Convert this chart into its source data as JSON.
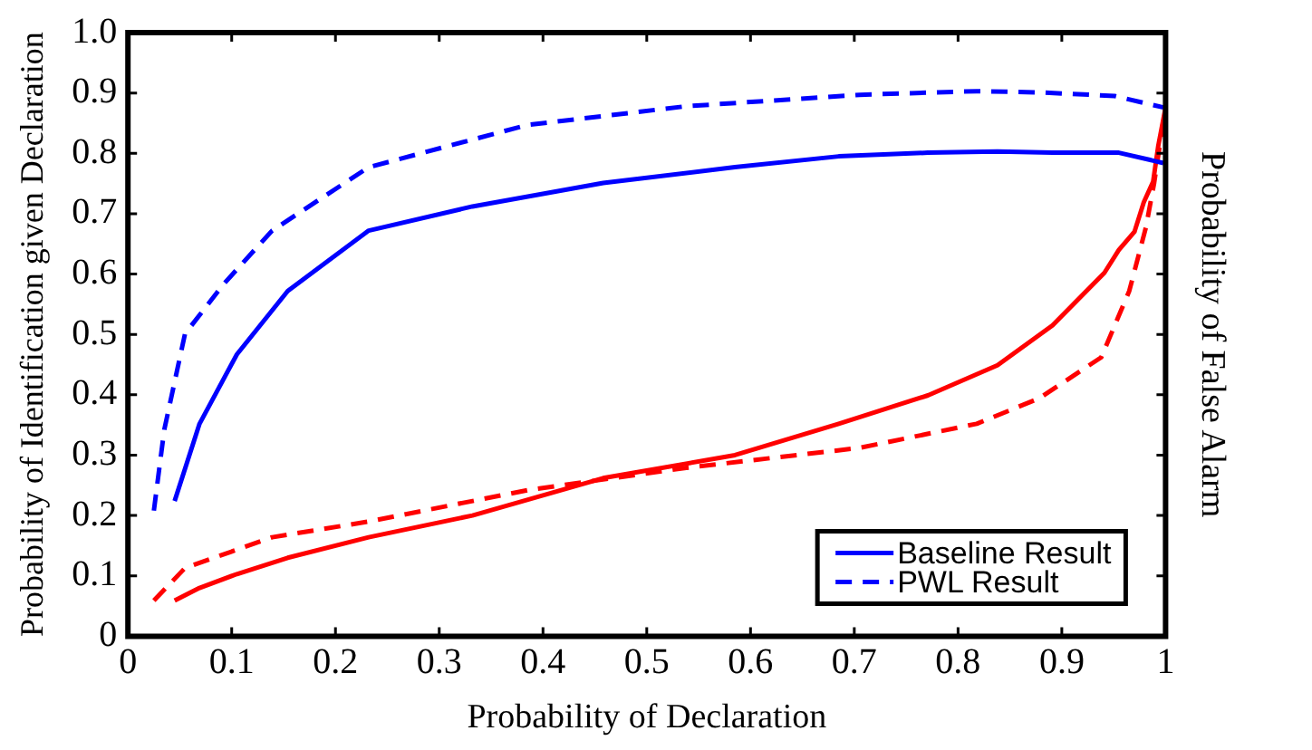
{
  "chart_data": {
    "type": "line",
    "xlabel": "Probability of Declaration",
    "ylabel": "Probability of Identification given Declaration",
    "y2label": "Probability of False Alarm",
    "xlim": [
      0,
      1
    ],
    "ylim": [
      0,
      1
    ],
    "xticks": [
      0,
      0.1,
      0.2,
      0.3,
      0.4,
      0.5,
      0.6,
      0.7,
      0.8,
      0.9,
      1
    ],
    "yticks": [
      0,
      0.1,
      0.2,
      0.3,
      0.4,
      0.5,
      0.6,
      0.7,
      0.8,
      0.9,
      {
        "value": 1,
        "label": "1.0"
      }
    ],
    "grid": false,
    "legend": "bottom right",
    "marker": "none",
    "series": [
      {
        "name": "Baseline Result",
        "color": "#0000ff",
        "line_style": "solid",
        "x": [
          0.045,
          0.069,
          0.105,
          0.154,
          0.232,
          0.332,
          0.458,
          0.585,
          0.685,
          0.771,
          0.838,
          0.891,
          0.955,
          0.998
        ],
        "values": [
          0.224,
          0.352,
          0.467,
          0.572,
          0.672,
          0.712,
          0.751,
          0.777,
          0.795,
          0.801,
          0.803,
          0.801,
          0.801,
          0.784
        ]
      },
      {
        "name": "PWL Result",
        "color": "#0000ff",
        "line_style": "dashed",
        "x": [
          0.025,
          0.035,
          0.055,
          0.092,
          0.139,
          0.232,
          0.385,
          0.538,
          0.705,
          0.818,
          0.878,
          0.951,
          0.998
        ],
        "values": [
          0.208,
          0.342,
          0.501,
          0.583,
          0.672,
          0.777,
          0.847,
          0.878,
          0.897,
          0.903,
          0.901,
          0.895,
          0.876
        ]
      },
      {
        "color": "#ff0000",
        "line_style": "solid",
        "x": [
          0.045,
          0.069,
          0.105,
          0.154,
          0.232,
          0.332,
          0.458,
          0.585,
          0.685,
          0.771,
          0.838,
          0.891,
          0.941,
          0.955,
          0.97,
          0.979,
          0.988,
          0.993,
          1.0
        ],
        "values": [
          0.059,
          0.08,
          0.103,
          0.13,
          0.164,
          0.2,
          0.262,
          0.3,
          0.352,
          0.399,
          0.449,
          0.515,
          0.602,
          0.64,
          0.67,
          0.719,
          0.753,
          0.813,
          0.876
        ]
      },
      {
        "color": "#ff0000",
        "line_style": "dashed",
        "x": [
          0.025,
          0.055,
          0.139,
          0.232,
          0.385,
          0.538,
          0.705,
          0.818,
          0.878,
          0.938,
          0.965,
          0.981,
          0.989,
          0.998
        ],
        "values": [
          0.059,
          0.113,
          0.164,
          0.19,
          0.242,
          0.279,
          0.312,
          0.352,
          0.394,
          0.462,
          0.572,
          0.677,
          0.751,
          0.855
        ]
      }
    ]
  }
}
